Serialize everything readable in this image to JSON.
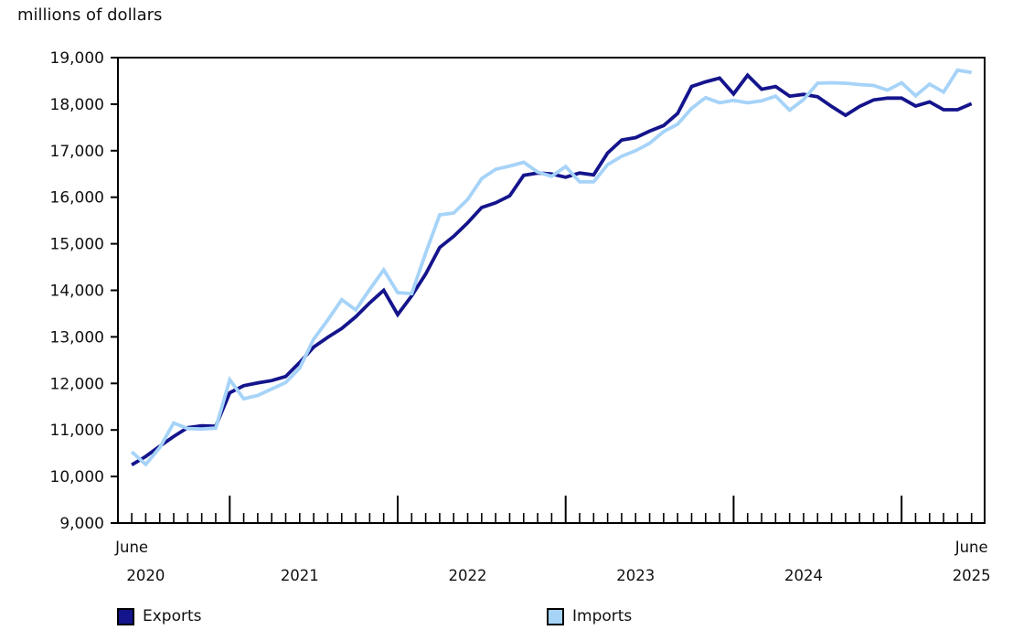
{
  "title": "millions of dollars",
  "chart_data": {
    "type": "line",
    "title": "millions of dollars",
    "ylabel": "millions of dollars",
    "xlabel": "",
    "grid": false,
    "legend_position": "bottom",
    "ylim": [
      9000,
      19000
    ],
    "ytick_step": 1000,
    "x_axis": {
      "start_label": "June",
      "end_label": "June",
      "year_labels": [
        {
          "label": "2020",
          "month_index": 1
        },
        {
          "label": "2021",
          "month_index": 12
        },
        {
          "label": "2022",
          "month_index": 24
        },
        {
          "label": "2023",
          "month_index": 36
        },
        {
          "label": "2024",
          "month_index": 48
        },
        {
          "label": "2025",
          "month_index": 60
        }
      ],
      "january_month_indexes": [
        7,
        19,
        31,
        43,
        55
      ]
    },
    "categories": [
      "2020-06",
      "2020-07",
      "2020-08",
      "2020-09",
      "2020-10",
      "2020-11",
      "2020-12",
      "2021-01",
      "2021-02",
      "2021-03",
      "2021-04",
      "2021-05",
      "2021-06",
      "2021-07",
      "2021-08",
      "2021-09",
      "2021-10",
      "2021-11",
      "2021-12",
      "2022-01",
      "2022-02",
      "2022-03",
      "2022-04",
      "2022-05",
      "2022-06",
      "2022-07",
      "2022-08",
      "2022-09",
      "2022-10",
      "2022-11",
      "2022-12",
      "2023-01",
      "2023-02",
      "2023-03",
      "2023-04",
      "2023-05",
      "2023-06",
      "2023-07",
      "2023-08",
      "2023-09",
      "2023-10",
      "2023-11",
      "2023-12",
      "2024-01",
      "2024-02",
      "2024-03",
      "2024-04",
      "2024-05",
      "2024-06",
      "2024-07",
      "2024-08",
      "2024-09",
      "2024-10",
      "2024-11",
      "2024-12",
      "2025-01",
      "2025-02",
      "2025-03",
      "2025-04",
      "2025-05",
      "2025-06"
    ],
    "series": [
      {
        "name": "Exports",
        "color": "#14148C",
        "values": [
          10250,
          10430,
          10650,
          10860,
          11050,
          11090,
          11080,
          11800,
          11950,
          12010,
          12060,
          12150,
          12450,
          12780,
          12990,
          13180,
          13430,
          13730,
          14000,
          13480,
          13880,
          14350,
          14920,
          15160,
          15450,
          15780,
          15880,
          16030,
          16470,
          16520,
          16500,
          16430,
          16520,
          16480,
          16950,
          17230,
          17280,
          17420,
          17540,
          17800,
          18380,
          18480,
          18560,
          18220,
          18620,
          18320,
          18380,
          18170,
          18210,
          18160,
          17950,
          17760,
          17950,
          18090,
          18130,
          18130,
          17960,
          18050,
          17880,
          17880,
          18010
        ]
      },
      {
        "name": "Imports",
        "color": "#A6D3F8",
        "values": [
          10530,
          10260,
          10620,
          11150,
          11030,
          11020,
          11040,
          12080,
          11670,
          11740,
          11880,
          12020,
          12330,
          12950,
          13360,
          13800,
          13580,
          14020,
          14440,
          13950,
          13930,
          14800,
          15620,
          15660,
          15950,
          16400,
          16600,
          16670,
          16750,
          16540,
          16450,
          16660,
          16330,
          16330,
          16700,
          16880,
          17000,
          17160,
          17410,
          17570,
          17910,
          18140,
          18030,
          18080,
          18030,
          18070,
          18170,
          17870,
          18100,
          18450,
          18460,
          18450,
          18420,
          18400,
          18300,
          18460,
          18180,
          18430,
          18260,
          18730,
          18680
        ]
      }
    ]
  },
  "legend": {
    "exports_label": "Exports",
    "imports_label": "Imports"
  }
}
